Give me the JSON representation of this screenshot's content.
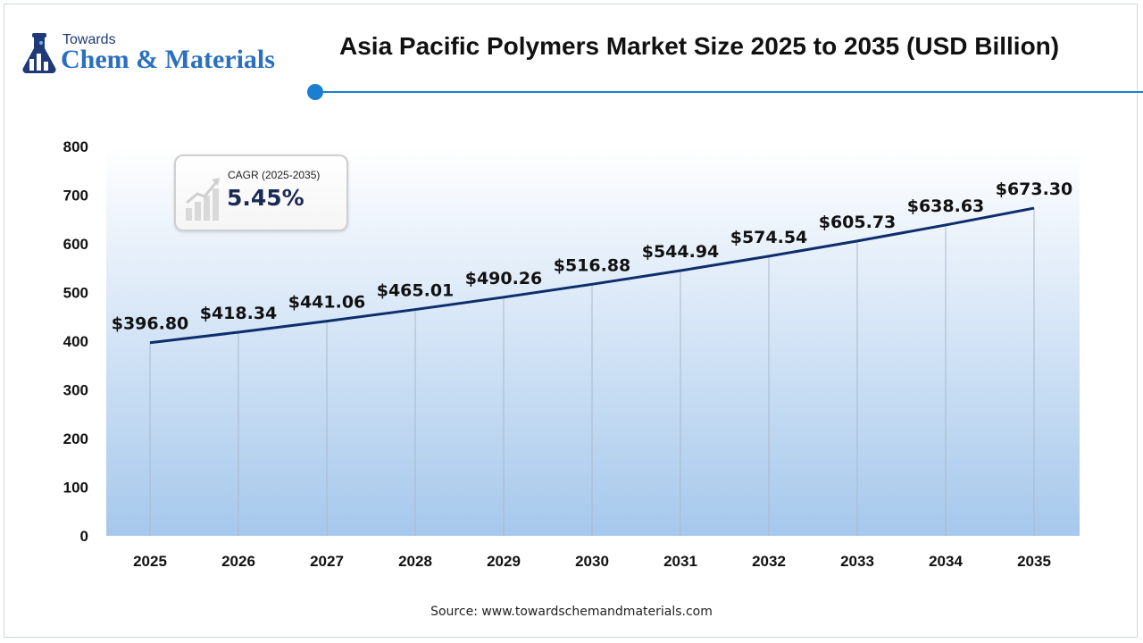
{
  "logo": {
    "small_text": "Towards",
    "big_text": "Chem & Materials"
  },
  "title": "Asia Pacific Polymers Market Size 2025 to 2035 (USD Billion)",
  "cagr": {
    "label": "CAGR (2025-2035)",
    "value": "5.45%"
  },
  "source": "Source: www.towardschemandmaterials.com",
  "colors": {
    "line": "#0d2d6b",
    "accent": "#1a7fd1",
    "logo_text": "#2b6fbf",
    "area_top": "#ffffff",
    "area_bottom": "#a6c8ec"
  },
  "chart_data": {
    "type": "line",
    "title": "Asia Pacific Polymers Market Size 2025 to 2035 (USD Billion)",
    "x": [
      "2025",
      "2026",
      "2027",
      "2028",
      "2029",
      "2030",
      "2031",
      "2032",
      "2033",
      "2034",
      "2035"
    ],
    "series": [
      {
        "values": [
          396.8,
          418.34,
          441.06,
          465.01,
          490.26,
          516.88,
          544.94,
          574.54,
          605.73,
          638.63,
          673.3
        ],
        "labels": [
          "$396.80",
          "$418.34",
          "$441.06",
          "$465.01",
          "$490.26",
          "$516.88",
          "$544.94",
          "$574.54",
          "$605.73",
          "$638.63",
          "$673.30"
        ]
      }
    ],
    "yticks": [
      "0",
      "100",
      "200",
      "300",
      "400",
      "500",
      "600",
      "700",
      "800"
    ],
    "ylim": [
      0,
      800
    ],
    "xlabel": "",
    "ylabel": "",
    "grid": "vertical",
    "legend": "none"
  }
}
